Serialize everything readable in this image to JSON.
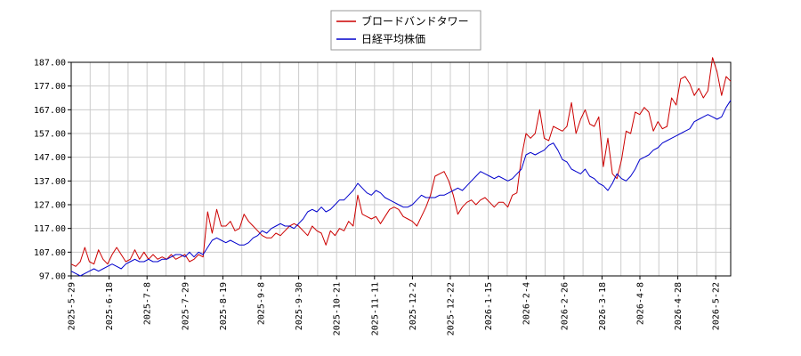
{
  "chart_data": {
    "type": "line",
    "title": "",
    "xlabel": "",
    "ylabel": "",
    "ylim": [
      97.0,
      187.0
    ],
    "yticks": [
      "97.00",
      "107.00",
      "117.00",
      "127.00",
      "137.00",
      "147.00",
      "157.00",
      "167.00",
      "177.00",
      "187.00"
    ],
    "xticks": [
      "2025-5-29",
      "2025-6-18",
      "2025-7-8",
      "2025-7-29",
      "2025-8-19",
      "2025-9-8",
      "2025-9-30",
      "2025-10-21",
      "2025-11-11",
      "2025-12-2",
      "2025-12-22",
      "2026-1-15",
      "2026-2-4",
      "2026-2-26",
      "2026-3-18",
      "2026-4-8",
      "2026-4-28",
      "2026-5-22"
    ],
    "grid": true,
    "legend": "top-center",
    "series": [
      {
        "name": "ブロードバンドタワー",
        "color": "#cc0000",
        "values": [
          102,
          101,
          103,
          109,
          103,
          102,
          108,
          104,
          102,
          106,
          109,
          106,
          103,
          104,
          108,
          104,
          107,
          104,
          106,
          104,
          105,
          104,
          106,
          104,
          105,
          106,
          103,
          104,
          106,
          105,
          124,
          115,
          125,
          118,
          118,
          120,
          116,
          117,
          123,
          120,
          118,
          116,
          114,
          113,
          113,
          115,
          114,
          116,
          118,
          119,
          118,
          116,
          114,
          118,
          116,
          115,
          110,
          116,
          114,
          117,
          116,
          120,
          118,
          131,
          123,
          122,
          121,
          122,
          119,
          122,
          125,
          126,
          125,
          122,
          121,
          120,
          118,
          122,
          126,
          131,
          139,
          140,
          141,
          137,
          131,
          123,
          126,
          128,
          129,
          127,
          129,
          130,
          128,
          126,
          128,
          128,
          126,
          131,
          132,
          147,
          157,
          155,
          157,
          167,
          155,
          154,
          160,
          159,
          158,
          160,
          170,
          157,
          163,
          167,
          161,
          160,
          164,
          143,
          155,
          140,
          138,
          146,
          158,
          157,
          166,
          165,
          168,
          166,
          158,
          162,
          159,
          160,
          172,
          169,
          180,
          181,
          178,
          173,
          176,
          172,
          175,
          189,
          183,
          173,
          181,
          179
        ]
      },
      {
        "name": "日経平均株価",
        "color": "#0000cc",
        "values": [
          99,
          98,
          97,
          98,
          99,
          100,
          99,
          100,
          101,
          102,
          101,
          100,
          102,
          103,
          104,
          103,
          103,
          104,
          103,
          103,
          104,
          104,
          105,
          106,
          106,
          105,
          107,
          105,
          107,
          106,
          109,
          112,
          113,
          112,
          111,
          112,
          111,
          110,
          110,
          111,
          113,
          114,
          116,
          115,
          117,
          118,
          119,
          118,
          118,
          117,
          119,
          121,
          124,
          125,
          124,
          126,
          124,
          125,
          127,
          129,
          129,
          131,
          133,
          136,
          134,
          132,
          131,
          133,
          132,
          130,
          129,
          128,
          127,
          126,
          126,
          127,
          129,
          131,
          130,
          130,
          130,
          131,
          131,
          132,
          133,
          134,
          133,
          135,
          137,
          139,
          141,
          140,
          139,
          138,
          139,
          138,
          137,
          138,
          140,
          142,
          148,
          149,
          148,
          149,
          150,
          152,
          153,
          150,
          146,
          145,
          142,
          141,
          140,
          142,
          139,
          138,
          136,
          135,
          133,
          136,
          140,
          138,
          137,
          139,
          142,
          146,
          147,
          148,
          150,
          151,
          153,
          154,
          155,
          156,
          157,
          158,
          159,
          162,
          163,
          164,
          165,
          164,
          163,
          164,
          168,
          171
        ]
      }
    ]
  }
}
